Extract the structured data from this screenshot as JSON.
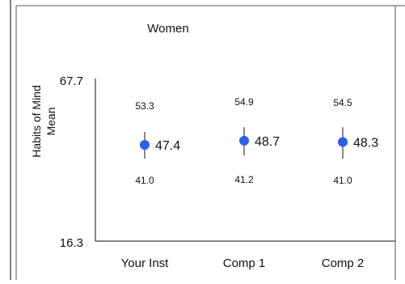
{
  "chart_data": {
    "type": "scatter",
    "title": "Women",
    "ylabel_lines": [
      "Habits of Mind",
      "Mean"
    ],
    "ylim": [
      16.3,
      67.7
    ],
    "y_tick_labels": [
      "67.7",
      "16.3"
    ],
    "categories": [
      "Your Inst",
      "Comp 1",
      "Comp 2"
    ],
    "means": [
      47.4,
      48.7,
      48.3
    ],
    "mean_labels": [
      "47.4",
      "48.7",
      "48.3"
    ],
    "upper": [
      53.3,
      54.9,
      54.5
    ],
    "upper_labels": [
      "53.3",
      "54.9",
      "54.5"
    ],
    "lower": [
      41.0,
      41.2,
      41.0
    ],
    "lower_labels": [
      "41.0",
      "41.2",
      "41.0"
    ],
    "errorbar_low": [
      43.0,
      44.0,
      43.0
    ],
    "errorbar_high": [
      51.5,
      53.0,
      53.0
    ],
    "marker_color": "#2f5eea",
    "grid": false,
    "legend": "none"
  }
}
